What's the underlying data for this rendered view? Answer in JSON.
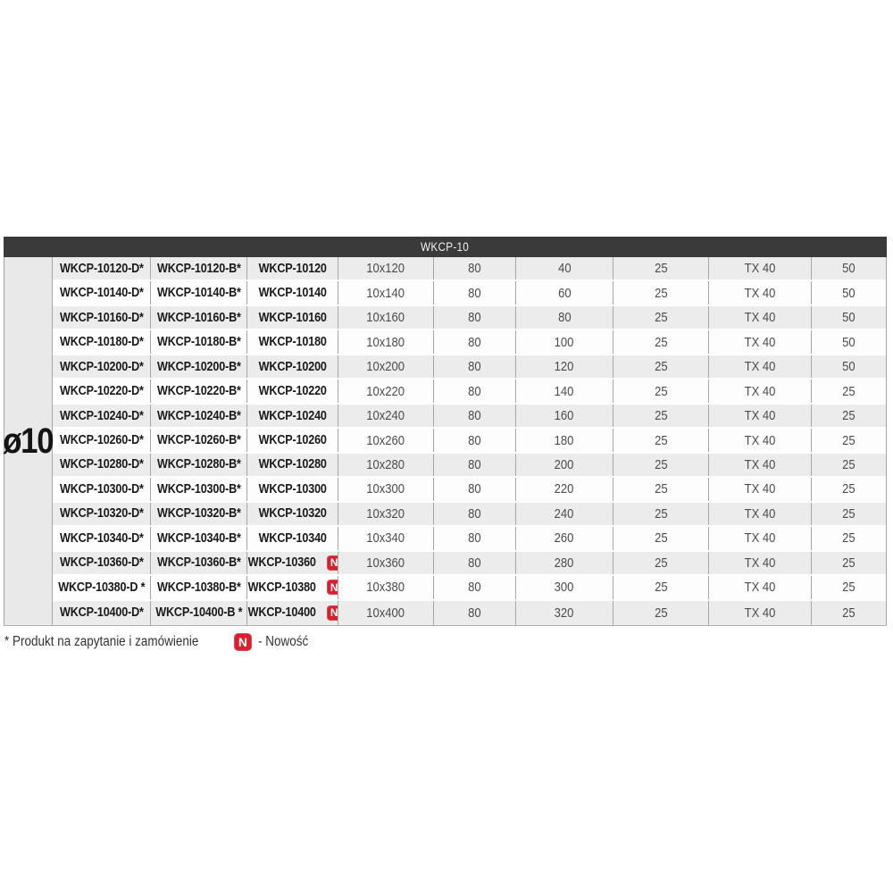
{
  "table": {
    "title": "WKCP-10",
    "diameter_label": "ø10",
    "new_badge_label": "N",
    "colors": {
      "header_bg": "#3a3a3a",
      "accent_red": "#d6202c",
      "stripe_grey": "#ececec",
      "diameter_column_grey": "#e9e9e9"
    },
    "rows": [
      {
        "code_d": "WKCP-10120-D*",
        "code_b": "WKCP-10120-B*",
        "code": "WKCP-10120",
        "is_new": false,
        "size": "10x120",
        "v1": "80",
        "v2": "40",
        "v3": "25",
        "drive": "TX 40",
        "v4": "50"
      },
      {
        "code_d": "WKCP-10140-D*",
        "code_b": "WKCP-10140-B*",
        "code": "WKCP-10140",
        "is_new": false,
        "size": "10x140",
        "v1": "80",
        "v2": "60",
        "v3": "25",
        "drive": "TX 40",
        "v4": "50"
      },
      {
        "code_d": "WKCP-10160-D*",
        "code_b": "WKCP-10160-B*",
        "code": "WKCP-10160",
        "is_new": false,
        "size": "10x160",
        "v1": "80",
        "v2": "80",
        "v3": "25",
        "drive": "TX 40",
        "v4": "50"
      },
      {
        "code_d": "WKCP-10180-D*",
        "code_b": "WKCP-10180-B*",
        "code": "WKCP-10180",
        "is_new": false,
        "size": "10x180",
        "v1": "80",
        "v2": "100",
        "v3": "25",
        "drive": "TX 40",
        "v4": "50"
      },
      {
        "code_d": "WKCP-10200-D*",
        "code_b": "WKCP-10200-B*",
        "code": "WKCP-10200",
        "is_new": false,
        "size": "10x200",
        "v1": "80",
        "v2": "120",
        "v3": "25",
        "drive": "TX 40",
        "v4": "50"
      },
      {
        "code_d": "WKCP-10220-D*",
        "code_b": "WKCP-10220-B*",
        "code": "WKCP-10220",
        "is_new": false,
        "size": "10x220",
        "v1": "80",
        "v2": "140",
        "v3": "25",
        "drive": "TX 40",
        "v4": "25"
      },
      {
        "code_d": "WKCP-10240-D*",
        "code_b": "WKCP-10240-B*",
        "code": "WKCP-10240",
        "is_new": false,
        "size": "10x240",
        "v1": "80",
        "v2": "160",
        "v3": "25",
        "drive": "TX 40",
        "v4": "25"
      },
      {
        "code_d": "WKCP-10260-D*",
        "code_b": "WKCP-10260-B*",
        "code": "WKCP-10260",
        "is_new": false,
        "size": "10x260",
        "v1": "80",
        "v2": "180",
        "v3": "25",
        "drive": "TX 40",
        "v4": "25"
      },
      {
        "code_d": "WKCP-10280-D*",
        "code_b": "WKCP-10280-B*",
        "code": "WKCP-10280",
        "is_new": false,
        "size": "10x280",
        "v1": "80",
        "v2": "200",
        "v3": "25",
        "drive": "TX 40",
        "v4": "25"
      },
      {
        "code_d": "WKCP-10300-D*",
        "code_b": "WKCP-10300-B*",
        "code": "WKCP-10300",
        "is_new": false,
        "size": "10x300",
        "v1": "80",
        "v2": "220",
        "v3": "25",
        "drive": "TX 40",
        "v4": "25"
      },
      {
        "code_d": "WKCP-10320-D*",
        "code_b": "WKCP-10320-B*",
        "code": "WKCP-10320",
        "is_new": false,
        "size": "10x320",
        "v1": "80",
        "v2": "240",
        "v3": "25",
        "drive": "TX 40",
        "v4": "25"
      },
      {
        "code_d": "WKCP-10340-D*",
        "code_b": "WKCP-10340-B*",
        "code": "WKCP-10340",
        "is_new": false,
        "size": "10x340",
        "v1": "80",
        "v2": "260",
        "v3": "25",
        "drive": "TX 40",
        "v4": "25"
      },
      {
        "code_d": "WKCP-10360-D*",
        "code_b": "WKCP-10360-B*",
        "code": "WKCP-10360",
        "is_new": true,
        "size": "10x360",
        "v1": "80",
        "v2": "280",
        "v3": "25",
        "drive": "TX 40",
        "v4": "25"
      },
      {
        "code_d": "WKCP-10380-D *",
        "code_b": "WKCP-10380-B*",
        "code": "WKCP-10380",
        "is_new": true,
        "size": "10x380",
        "v1": "80",
        "v2": "300",
        "v3": "25",
        "drive": "TX 40",
        "v4": "25"
      },
      {
        "code_d": "WKCP-10400-D*",
        "code_b": "WKCP-10400-B *",
        "code": "WKCP-10400",
        "is_new": true,
        "size": "10x400",
        "v1": "80",
        "v2": "320",
        "v3": "25",
        "drive": "TX 40",
        "v4": "25"
      }
    ]
  },
  "footer": {
    "note": "* Produkt na zapytanie i zamówienie",
    "badge": "N",
    "badge_meaning": "- Nowość"
  }
}
